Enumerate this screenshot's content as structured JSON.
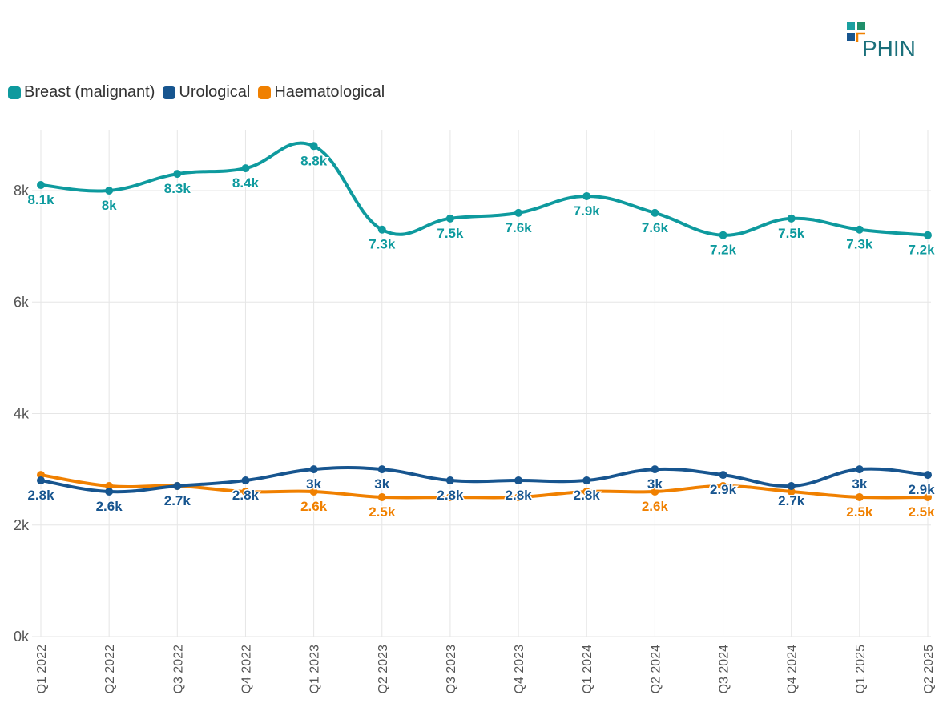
{
  "logo_text": "PHIN",
  "chart_data": {
    "type": "line",
    "categories": [
      "Q1 2022",
      "Q2 2022",
      "Q3 2022",
      "Q4 2022",
      "Q1 2023",
      "Q2 2023",
      "Q3 2023",
      "Q4 2023",
      "Q1 2024",
      "Q2 2024",
      "Q3 2024",
      "Q4 2024",
      "Q1 2025",
      "Q2 2025"
    ],
    "ylim": [
      0,
      9000
    ],
    "yticks": [
      0,
      2000,
      4000,
      6000,
      8000
    ],
    "ytick_labels": [
      "0k",
      "2k",
      "4k",
      "6k",
      "8k"
    ],
    "grid": true,
    "legend_position": "top-left",
    "series": [
      {
        "name": "Breast (malignant)",
        "color": "#0e9a9e",
        "values": [
          8100,
          8000,
          8300,
          8400,
          8800,
          7300,
          7500,
          7600,
          7900,
          7600,
          7200,
          7500,
          7300,
          7200
        ],
        "labels": [
          "8.1k",
          "8k",
          "8.3k",
          "8.4k",
          "8.8k",
          "7.3k",
          "7.5k",
          "7.6k",
          "7.9k",
          "7.6k",
          "7.2k",
          "7.5k",
          "7.3k",
          "7.2k"
        ]
      },
      {
        "name": "Urological",
        "color": "#17558f",
        "values": [
          2800,
          2600,
          2700,
          2800,
          3000,
          3000,
          2800,
          2800,
          2800,
          3000,
          2900,
          2700,
          3000,
          2900
        ],
        "labels": [
          "2.8k",
          "2.6k",
          "2.7k",
          "2.8k",
          "3k",
          "3k",
          "2.8k",
          "2.8k",
          "2.8k",
          "3k",
          "2.9k",
          "2.7k",
          "3k",
          "2.9k"
        ]
      },
      {
        "name": "Haematological",
        "color": "#f08000",
        "values": [
          2900,
          2700,
          2700,
          2600,
          2600,
          2500,
          2500,
          2500,
          2600,
          2600,
          2700,
          2600,
          2500,
          2500
        ],
        "labels": [
          "",
          "",
          "",
          "",
          "2.6k",
          "2.5k",
          "",
          "",
          "",
          "2.6k",
          "",
          "",
          "2.5k",
          "2.5k"
        ]
      }
    ]
  }
}
